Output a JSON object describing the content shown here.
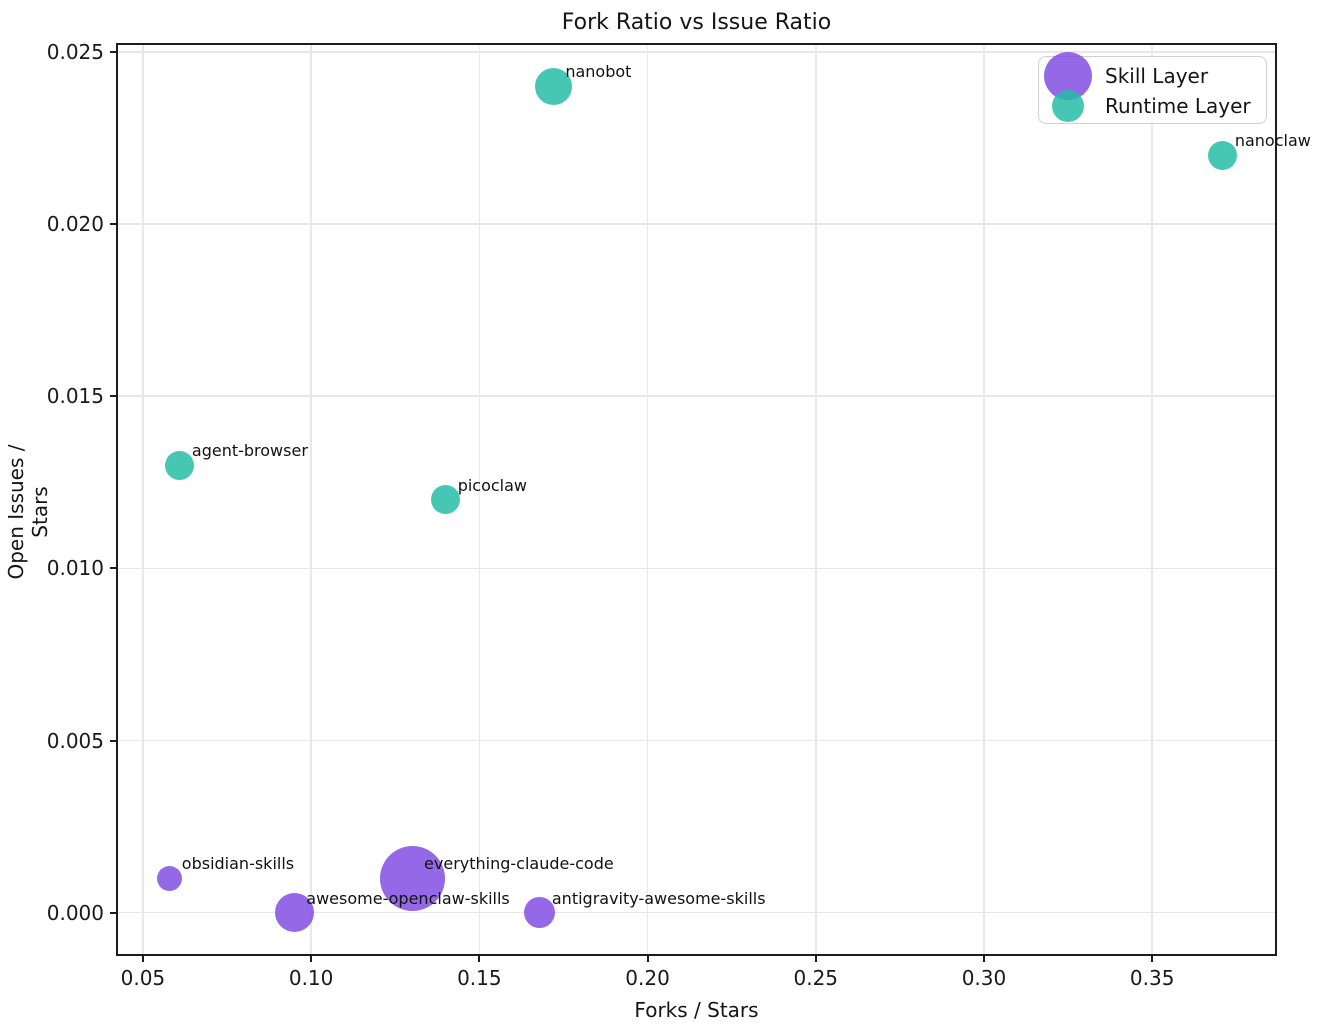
{
  "chart_data": {
    "type": "scatter",
    "title": "Fork Ratio vs Issue Ratio",
    "xlabel": "Forks / Stars",
    "ylabel": "Open Issues / Stars",
    "xlim": [
      0.0426,
      0.3865
    ],
    "ylim": [
      -0.0012,
      0.0252
    ],
    "x_tick_values": [
      0.05,
      0.1,
      0.15,
      0.2,
      0.25,
      0.3,
      0.35
    ],
    "x_tick_labels": [
      "0.05",
      "0.10",
      "0.15",
      "0.20",
      "0.25",
      "0.30",
      "0.35"
    ],
    "y_tick_values": [
      0.0,
      0.005,
      0.01,
      0.015,
      0.02,
      0.025
    ],
    "y_tick_labels": [
      "0.000",
      "0.005",
      "0.010",
      "0.015",
      "0.020",
      "0.025"
    ],
    "grid": true,
    "marker_alpha": 0.85,
    "legend_position": "upper right",
    "series": [
      {
        "name": "Skill Layer",
        "color": "#824de4",
        "legend_marker_size": 48,
        "points": [
          {
            "label": "obsidian-skills",
            "x": 0.058,
            "y": 0.001,
            "size": 25
          },
          {
            "label": "awesome-openclaw-skills",
            "x": 0.095,
            "y": 0.0,
            "size": 39
          },
          {
            "label": "everything-claude-code",
            "x": 0.13,
            "y": 0.001,
            "size": 65
          },
          {
            "label": "antigravity-awesome-skills",
            "x": 0.168,
            "y": 0.0,
            "size": 31
          }
        ]
      },
      {
        "name": "Runtime Layer",
        "color": "#24bda6",
        "legend_marker_size": 32,
        "points": [
          {
            "label": "agent-browser",
            "x": 0.061,
            "y": 0.013,
            "size": 29
          },
          {
            "label": "picoclaw",
            "x": 0.14,
            "y": 0.012,
            "size": 29
          },
          {
            "label": "nanobot",
            "x": 0.172,
            "y": 0.024,
            "size": 37
          },
          {
            "label": "nanoclaw",
            "x": 0.371,
            "y": 0.022,
            "size": 29
          }
        ]
      }
    ]
  }
}
